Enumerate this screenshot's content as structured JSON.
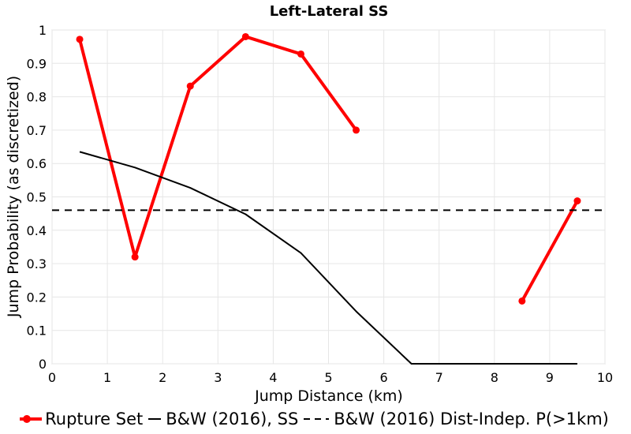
{
  "chart_data": {
    "type": "line",
    "title": "Left-Lateral SS",
    "xlabel": "Jump Distance (km)",
    "ylabel": "Jump Probability (as discretized)",
    "xlim": [
      0,
      10
    ],
    "ylim": [
      0,
      1
    ],
    "x_ticks": [
      "0",
      "1",
      "2",
      "3",
      "4",
      "5",
      "6",
      "7",
      "8",
      "9",
      "10"
    ],
    "y_ticks": [
      "0",
      "0.1",
      "0.2",
      "0.3",
      "0.4",
      "0.5",
      "0.6",
      "0.7",
      "0.8",
      "0.9",
      "1"
    ],
    "grid": true,
    "legend_position": "bottom",
    "series": [
      {
        "name": "Rupture Set",
        "color": "#ff0000",
        "style": "solid-markers",
        "segments": [
          {
            "x": [
              0.5,
              1.5,
              2.5,
              3.5,
              4.5,
              5.5
            ],
            "y": [
              0.972,
              0.32,
              0.832,
              0.98,
              0.928,
              0.7
            ]
          },
          {
            "x": [
              8.5,
              9.5
            ],
            "y": [
              0.188,
              0.488
            ]
          }
        ]
      },
      {
        "name": "B&W (2016), SS",
        "color": "#000000",
        "style": "solid",
        "segments": [
          {
            "x": [
              0.5,
              1.5,
              2.5,
              3.5,
              4.5,
              5.5,
              6.5,
              7.5,
              8.5,
              9.5
            ],
            "y": [
              0.635,
              0.588,
              0.527,
              0.448,
              0.332,
              0.157,
              0,
              0,
              0,
              0
            ]
          }
        ]
      },
      {
        "name": "B&W (2016) Dist-Indep. P(>1km)",
        "color": "#000000",
        "style": "dashed",
        "segments": [
          {
            "x": [
              0,
              10
            ],
            "y": [
              0.46,
              0.46
            ]
          }
        ]
      }
    ]
  }
}
